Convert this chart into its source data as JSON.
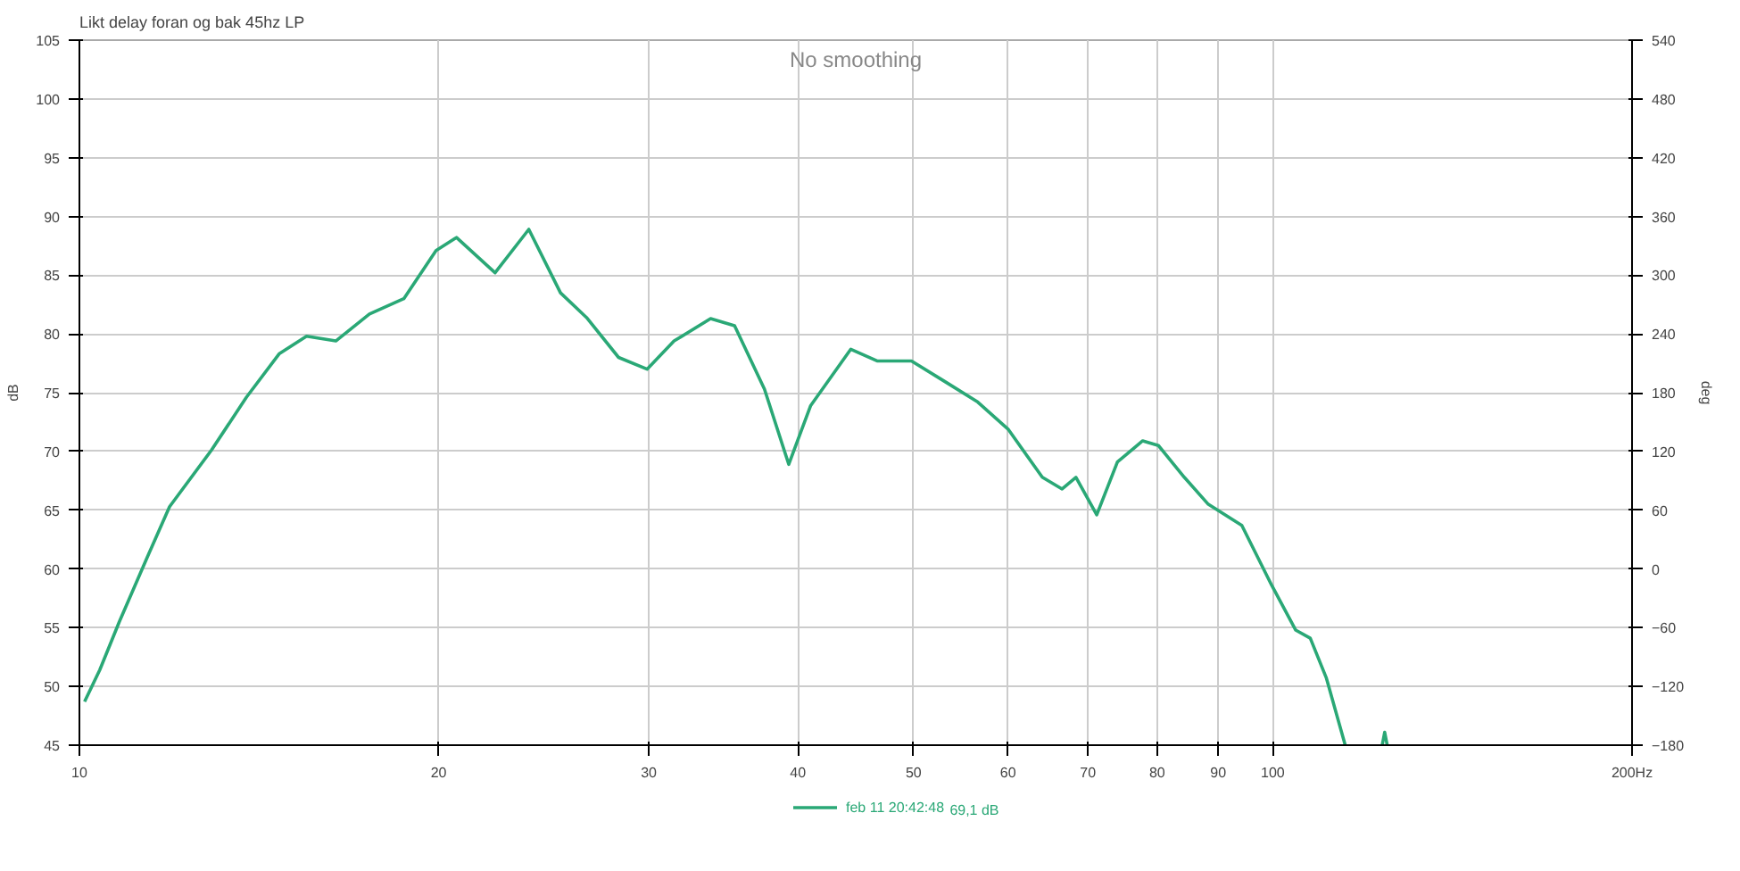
{
  "chart_data": {
    "type": "line",
    "title": "Likt delay foran og bak 45hz LP",
    "ylabel": "dB",
    "y2label": "deg",
    "annotations": [
      "No smoothing",
      "69,1 dB"
    ],
    "x": [
      10.1,
      10.4,
      10.8,
      11.4,
      11.9,
      12.9,
      13.8,
      14.7,
      15.5,
      16.4,
      17.5,
      18.7,
      19.9,
      20.7,
      22.3,
      23.8,
      25.3,
      26.6,
      28.3,
      29.9,
      31.5,
      33.8,
      35.4,
      37.5,
      39.3,
      41.0,
      44.3,
      46.6,
      49.8,
      53.2,
      56.6,
      60.0,
      64.1,
      66.6,
      68.4,
      71.2,
      74.1,
      77.8,
      80.2,
      84.3,
      88.3,
      94.2,
      99.8,
      104.5,
      107.5,
      110.9,
      115.0,
      120.0,
      123.5,
      124.1,
      124.7
    ],
    "series": [
      {
        "name": "feb 11 20:42:48",
        "color": "#2aa876",
        "values": [
          48.7,
          51.4,
          55.5,
          61,
          65.3,
          70.1,
          74.6,
          78.3,
          79.8,
          79.4,
          81.7,
          83.0,
          87.1,
          88.2,
          85.2,
          88.9,
          83.5,
          81.4,
          78.0,
          77.0,
          79.4,
          81.3,
          80.7,
          75.3,
          68.9,
          73.9,
          78.7,
          77.7,
          77.7,
          75.9,
          74.2,
          71.9,
          67.8,
          66.8,
          67.8,
          64.6,
          69.1,
          70.9,
          70.5,
          67.8,
          65.5,
          63.7,
          58.6,
          54.8,
          54.1,
          50.7,
          45.0,
          null,
          45.0,
          46.1,
          45.0
        ]
      }
    ],
    "xlim": [
      10,
      200
    ],
    "xticks": [
      10,
      20,
      30,
      40,
      50,
      60,
      70,
      80,
      90,
      100,
      {
        "value": 200,
        "label": "200Hz"
      }
    ],
    "ylim": [
      45,
      105
    ],
    "yticks": [
      45,
      50,
      55,
      60,
      65,
      70,
      75,
      80,
      85,
      90,
      95,
      100,
      105
    ],
    "y2lim": [
      -180,
      540
    ],
    "y2ticks": [
      -180,
      -120,
      -60,
      0,
      60,
      120,
      180,
      240,
      300,
      360,
      420,
      480,
      540
    ],
    "log": "x",
    "grid": true,
    "legend": "bottom",
    "line_style": "solid",
    "marker": "none"
  }
}
